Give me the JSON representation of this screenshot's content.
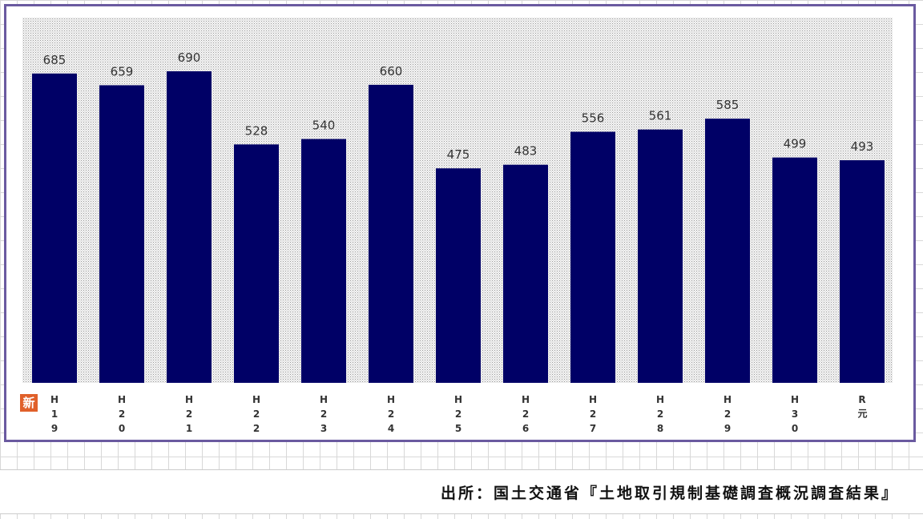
{
  "chart_data": {
    "type": "bar",
    "categories": [
      "H19",
      "H20",
      "H21",
      "H22",
      "H23",
      "H24",
      "H25",
      "H26",
      "H27",
      "H28",
      "H29",
      "H30",
      "R元"
    ],
    "values": [
      685,
      659,
      690,
      528,
      540,
      660,
      475,
      483,
      556,
      561,
      585,
      499,
      493
    ],
    "color": "#000066",
    "badge": "新",
    "source": "出所：国土交通省『土地取引規制基礎調査概況調査結果』"
  }
}
